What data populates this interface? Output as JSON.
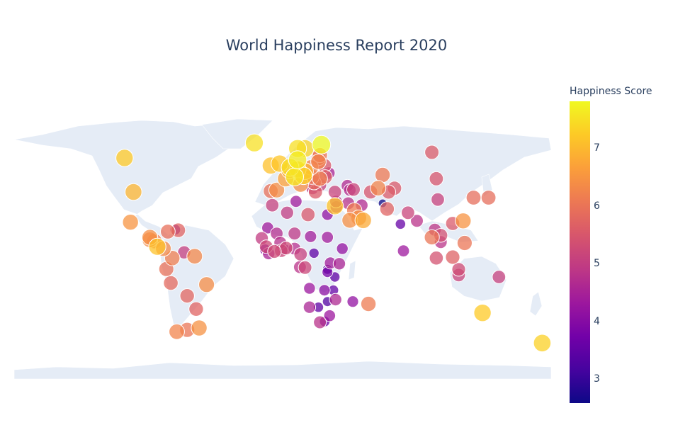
{
  "title": "World Happiness Report 2020",
  "colorbar": {
    "title": "Happiness Score",
    "ticks": [
      "7",
      "6",
      "5",
      "4",
      "3"
    ],
    "range": [
      2.57,
      7.81
    ],
    "colorscale": [
      "#0d0887",
      "#46039f",
      "#7201a8",
      "#9c179e",
      "#bd3786",
      "#d8576b",
      "#ed7953",
      "#fb9f3a",
      "#fdca26",
      "#f0f921"
    ]
  },
  "map": {
    "projection": "equirectangular",
    "land_color": "#e5ecf6",
    "marker_size_scaled_by_score": true
  },
  "chart_data": {
    "type": "scatter",
    "subtype": "scatter_geo",
    "title": "World Happiness Report 2020",
    "color_axis": "Happiness Score",
    "points": [
      {
        "lon": -106,
        "lat": 57,
        "score": 7.23
      },
      {
        "lon": -100,
        "lat": 39,
        "score": 6.94
      },
      {
        "lon": -102,
        "lat": 23,
        "score": 6.47
      },
      {
        "lon": -84,
        "lat": 10,
        "score": 7.12
      },
      {
        "lon": -89,
        "lat": 15,
        "score": 6.4
      },
      {
        "lon": -86,
        "lat": 13,
        "score": 6.14
      },
      {
        "lon": -80,
        "lat": 9,
        "score": 6.31
      },
      {
        "lon": -89,
        "lat": 13.7,
        "score": 6.35
      },
      {
        "lon": -72,
        "lat": 19,
        "score": 3.72
      },
      {
        "lon": -70,
        "lat": 18.7,
        "score": 5.69
      },
      {
        "lon": -77,
        "lat": 18,
        "score": 5.89
      },
      {
        "lon": -66,
        "lat": 7,
        "score": 5.05
      },
      {
        "lon": -74,
        "lat": 4,
        "score": 6.16
      },
      {
        "lon": -78,
        "lat": -1.8,
        "score": 5.93
      },
      {
        "lon": -75,
        "lat": -9.2,
        "score": 5.8
      },
      {
        "lon": -64,
        "lat": -16,
        "score": 5.75
      },
      {
        "lon": -51,
        "lat": -10,
        "score": 6.38
      },
      {
        "lon": -58,
        "lat": -23,
        "score": 5.69
      },
      {
        "lon": -71,
        "lat": -35,
        "score": 6.23
      },
      {
        "lon": -64,
        "lat": -34,
        "score": 5.98
      },
      {
        "lon": -56,
        "lat": -33,
        "score": 6.44
      },
      {
        "lon": -59,
        "lat": 5,
        "score": 6.3
      },
      {
        "lon": -19,
        "lat": 65,
        "score": 7.5
      },
      {
        "lon": -8,
        "lat": 53,
        "score": 7.09
      },
      {
        "lon": -2,
        "lat": 54,
        "score": 7.16
      },
      {
        "lon": 2,
        "lat": 46,
        "score": 6.66
      },
      {
        "lon": -4,
        "lat": 40,
        "score": 6.4
      },
      {
        "lon": -8,
        "lat": 39.5,
        "score": 5.91
      },
      {
        "lon": 10,
        "lat": 62,
        "score": 7.49
      },
      {
        "lon": 15,
        "lat": 62,
        "score": 7.35
      },
      {
        "lon": 26,
        "lat": 64,
        "score": 7.81
      },
      {
        "lon": 10,
        "lat": 56,
        "score": 7.65
      },
      {
        "lon": 5,
        "lat": 52,
        "score": 7.45
      },
      {
        "lon": 4.5,
        "lat": 50.5,
        "score": 6.86
      },
      {
        "lon": 10,
        "lat": 51,
        "score": 7.08
      },
      {
        "lon": 8,
        "lat": 47,
        "score": 7.56
      },
      {
        "lon": 14,
        "lat": 47.5,
        "score": 7.29
      },
      {
        "lon": 12,
        "lat": 43,
        "score": 6.39
      },
      {
        "lon": 19,
        "lat": 52,
        "score": 6.19
      },
      {
        "lon": 15,
        "lat": 50,
        "score": 6.91
      },
      {
        "lon": 19.5,
        "lat": 47,
        "score": 6.0
      },
      {
        "lon": 25,
        "lat": 46,
        "score": 6.12
      },
      {
        "lon": 21,
        "lat": 44,
        "score": 5.78
      },
      {
        "lon": 20,
        "lat": 41,
        "score": 4.88
      },
      {
        "lon": 22,
        "lat": 39,
        "score": 5.52
      },
      {
        "lon": 25,
        "lat": 42.7,
        "score": 5.1
      },
      {
        "lon": 31,
        "lat": 49,
        "score": 4.56
      },
      {
        "lon": 28,
        "lat": 53,
        "score": 5.54
      },
      {
        "lon": 25,
        "lat": 58.5,
        "score": 6.02
      },
      {
        "lon": 24,
        "lat": 56.9,
        "score": 5.95
      },
      {
        "lon": 24,
        "lat": 55,
        "score": 6.22
      },
      {
        "lon": 28.5,
        "lat": 47,
        "score": 5.61
      },
      {
        "lon": 35,
        "lat": 39,
        "score": 5.13
      },
      {
        "lon": 35,
        "lat": 31.5,
        "score": 7.13
      },
      {
        "lon": 36,
        "lat": 31,
        "score": 4.63
      },
      {
        "lon": 35.8,
        "lat": 33.9,
        "score": 4.77
      },
      {
        "lon": 43.4,
        "lat": 42.3,
        "score": 4.67
      },
      {
        "lon": 45,
        "lat": 40,
        "score": 4.68
      },
      {
        "lon": 47.5,
        "lat": 40.3,
        "score": 5.17
      },
      {
        "lon": 53,
        "lat": 32,
        "score": 4.67
      },
      {
        "lon": 44,
        "lat": 33,
        "score": 4.79
      },
      {
        "lon": 45,
        "lat": 24,
        "score": 6.41
      },
      {
        "lon": 54,
        "lat": 24,
        "score": 6.79
      },
      {
        "lon": 51,
        "lat": 25.3,
        "score": 6.37
      },
      {
        "lon": 48,
        "lat": 29.3,
        "score": 6.1
      },
      {
        "lon": 59,
        "lat": 39,
        "score": 5.47
      },
      {
        "lon": 67,
        "lat": 48,
        "score": 6.06
      },
      {
        "lon": 64,
        "lat": 41,
        "score": 6.26
      },
      {
        "lon": 75,
        "lat": 41,
        "score": 5.54
      },
      {
        "lon": 71,
        "lat": 39,
        "score": 5.56
      },
      {
        "lon": 67,
        "lat": 33,
        "score": 2.57
      },
      {
        "lon": 70,
        "lat": 30,
        "score": 5.69
      },
      {
        "lon": 79,
        "lat": 22,
        "score": 3.57
      },
      {
        "lon": 84,
        "lat": 28,
        "score": 5.14
      },
      {
        "lon": 90,
        "lat": 23.7,
        "score": 4.83
      },
      {
        "lon": 81,
        "lat": 7.8,
        "score": 4.33
      },
      {
        "lon": 100,
        "lat": 15,
        "score": 5.99
      },
      {
        "lon": 102,
        "lat": 19,
        "score": 4.89
      },
      {
        "lon": 106,
        "lat": 12.5,
        "score": 4.85
      },
      {
        "lon": 106,
        "lat": 16,
        "score": 5.35
      },
      {
        "lon": 103,
        "lat": 4,
        "score": 5.38
      },
      {
        "lon": 114,
        "lat": 4.5,
        "score": 5.66
      },
      {
        "lon": 122,
        "lat": 12,
        "score": 6.01
      },
      {
        "lon": 118,
        "lat": -2,
        "score": 5.29
      },
      {
        "lon": 118,
        "lat": -5,
        "score": 5.13
      },
      {
        "lon": 104,
        "lat": 35,
        "score": 5.12
      },
      {
        "lon": 103,
        "lat": 46,
        "score": 5.46
      },
      {
        "lon": 114,
        "lat": 22.3,
        "score": 5.51
      },
      {
        "lon": 121,
        "lat": 23.7,
        "score": 6.46
      },
      {
        "lon": 128,
        "lat": 36,
        "score": 5.87
      },
      {
        "lon": 138,
        "lat": 36,
        "score": 5.87
      },
      {
        "lon": 134,
        "lat": -25,
        "score": 7.22
      },
      {
        "lon": 174,
        "lat": -41,
        "score": 7.3
      },
      {
        "lon": -7,
        "lat": 32,
        "score": 5.09
      },
      {
        "lon": 3,
        "lat": 28,
        "score": 5.0
      },
      {
        "lon": 9,
        "lat": 34,
        "score": 4.39
      },
      {
        "lon": 17,
        "lat": 27,
        "score": 5.49
      },
      {
        "lon": 30,
        "lat": 27,
        "score": 4.15
      },
      {
        "lon": -14,
        "lat": 14.5,
        "score": 4.98
      },
      {
        "lon": -10,
        "lat": 20,
        "score": 4.38
      },
      {
        "lon": -4,
        "lat": 17,
        "score": 4.73
      },
      {
        "lon": -1.6,
        "lat": 12.2,
        "score": 4.77
      },
      {
        "lon": 8,
        "lat": 17,
        "score": 4.91
      },
      {
        "lon": 18.7,
        "lat": 15.4,
        "score": 4.42
      },
      {
        "lon": -11,
        "lat": 10,
        "score": 5.2
      },
      {
        "lon": -11.8,
        "lat": 8.5,
        "score": 3.93
      },
      {
        "lon": -9.4,
        "lat": 6.4,
        "score": 4.56
      },
      {
        "lon": -5.5,
        "lat": 7.5,
        "score": 5.23
      },
      {
        "lon": -1,
        "lat": 7.9,
        "score": 5.15
      },
      {
        "lon": 2.3,
        "lat": 9.3,
        "score": 5.22
      },
      {
        "lon": 1,
        "lat": 8.6,
        "score": 4.19
      },
      {
        "lon": 8,
        "lat": 9,
        "score": 4.72
      },
      {
        "lon": 12,
        "lat": 6,
        "score": 5.08
      },
      {
        "lon": 11.6,
        "lat": -0.8,
        "score": 4.83
      },
      {
        "lon": 15,
        "lat": -1,
        "score": 5.19
      },
      {
        "lon": 21,
        "lat": 6.6,
        "score": 3.48
      },
      {
        "lon": 30,
        "lat": 15,
        "score": 4.4
      },
      {
        "lon": 40,
        "lat": 9,
        "score": 4.19
      },
      {
        "lon": 38,
        "lat": 1,
        "score": 4.58
      },
      {
        "lon": 32,
        "lat": 1.4,
        "score": 4.43
      },
      {
        "lon": 30,
        "lat": -2,
        "score": 3.31
      },
      {
        "lon": 30,
        "lat": -3.4,
        "score": 3.78
      },
      {
        "lon": 35,
        "lat": -6,
        "score": 3.48
      },
      {
        "lon": 34,
        "lat": -13,
        "score": 3.54
      },
      {
        "lon": 28,
        "lat": -13,
        "score": 4.07
      },
      {
        "lon": 30,
        "lat": -19,
        "score": 3.3
      },
      {
        "lon": 35.5,
        "lat": -18,
        "score": 4.62
      },
      {
        "lon": 24,
        "lat": -22,
        "score": 3.48
      },
      {
        "lon": 18,
        "lat": -22,
        "score": 4.57
      },
      {
        "lon": 25,
        "lat": -30,
        "score": 4.81
      },
      {
        "lon": 28.2,
        "lat": -29.6,
        "score": 3.65
      },
      {
        "lon": 31.5,
        "lat": -26.5,
        "score": 4.31
      },
      {
        "lon": 47,
        "lat": -19,
        "score": 4.17
      },
      {
        "lon": 57.5,
        "lat": -20.3,
        "score": 6.1
      },
      {
        "lon": 18,
        "lat": -12,
        "score": 4.3
      },
      {
        "lon": 100,
        "lat": 60,
        "score": 5.55
      },
      {
        "lon": 145,
        "lat": -6,
        "score": 5.1
      }
    ]
  }
}
